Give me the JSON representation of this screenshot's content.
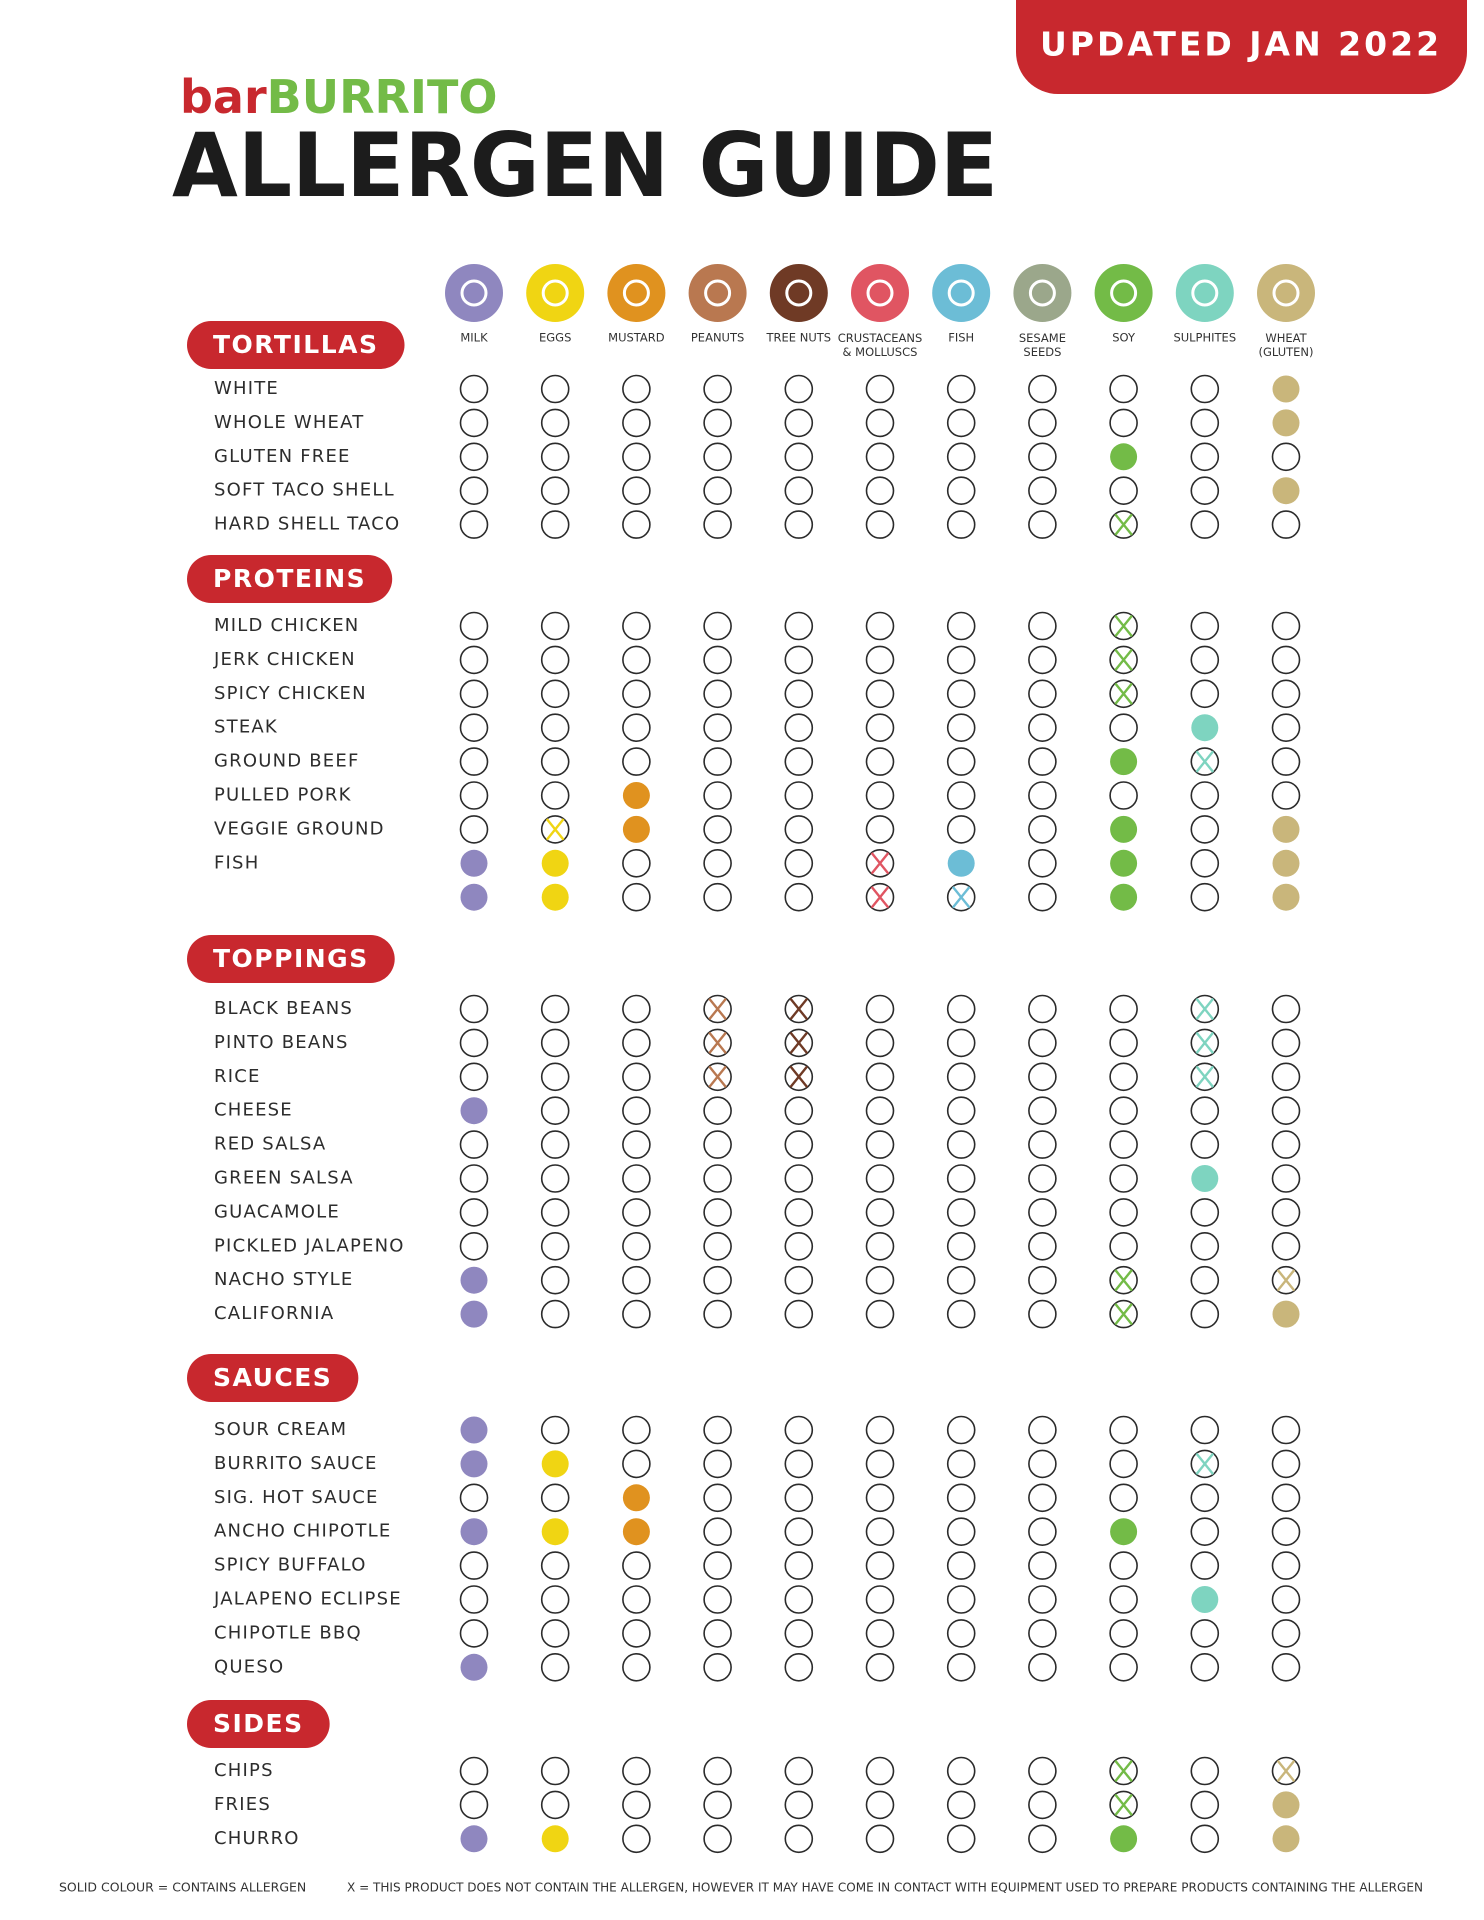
{
  "header": {
    "badge": "UPDATED JAN 2022",
    "logo_prefix": "bar",
    "logo_main": "BURRITO",
    "title": "ALLERGEN GUIDE"
  },
  "allergens": [
    {
      "label": "MILK",
      "color": "#8f87bf"
    },
    {
      "label": "EGGS",
      "color": "#f0d513"
    },
    {
      "label": "MUSTARD",
      "color": "#e0921f"
    },
    {
      "label": "PEANUTS",
      "color": "#b97850"
    },
    {
      "label": "TREE NUTS",
      "color": "#6f3a25"
    },
    {
      "label": "CRUSTACEANS\n& MOLLUSCS",
      "color": "#e05562"
    },
    {
      "label": "FISH",
      "color": "#6cbdd6"
    },
    {
      "label": "SESAME\nSEEDS",
      "color": "#9ba78b"
    },
    {
      "label": "SOY",
      "color": "#73bb47"
    },
    {
      "label": "SULPHITES",
      "color": "#7ed4c0"
    },
    {
      "label": "WHEAT\n(GLUTEN)",
      "color": "#c9b67b"
    }
  ],
  "sections": [
    {
      "title": "TORTILLAS",
      "rows": [
        {
          "label": "WHITE",
          "cells": "..........C"
        },
        {
          "label": "WHOLE WHEAT",
          "cells": "..........C"
        },
        {
          "label": "GLUTEN FREE",
          "cells": "........C.."
        },
        {
          "label": "SOFT TACO SHELL",
          "cells": "..........C"
        },
        {
          "label": "HARD SHELL TACO",
          "cells": "........X.."
        }
      ]
    },
    {
      "title": "PROTEINS",
      "rows": [
        {
          "label": "MILD CHICKEN",
          "cells": "........X.."
        },
        {
          "label": "JERK CHICKEN",
          "cells": "........X.."
        },
        {
          "label": "SPICY CHICKEN",
          "cells": "........X.."
        },
        {
          "label": "STEAK",
          "cells": ".........C."
        },
        {
          "label": "GROUND BEEF",
          "cells": "........CX."
        },
        {
          "label": "PULLED PORK",
          "cells": "..C........"
        },
        {
          "label": "VEGGIE GROUND",
          "cells": ".XC.....C.C"
        },
        {
          "label": "FISH",
          "cells": "CC...XC.C.C"
        },
        {
          "label": null,
          "cells": "CC...XX.C.C"
        }
      ]
    },
    {
      "title": "TOPPINGS",
      "rows": [
        {
          "label": "BLACK BEANS",
          "cells": "...XX....X."
        },
        {
          "label": "PINTO BEANS",
          "cells": "...XX....X."
        },
        {
          "label": "RICE",
          "cells": "...XX....X."
        },
        {
          "label": "CHEESE",
          "cells": "C.........."
        },
        {
          "label": "RED SALSA",
          "cells": "..........."
        },
        {
          "label": "GREEN SALSA",
          "cells": ".........C."
        },
        {
          "label": "GUACAMOLE",
          "cells": "..........."
        },
        {
          "label": "PICKLED JALAPENO",
          "cells": "..........."
        },
        {
          "label": "NACHO STYLE",
          "cells": "C.......X.X"
        },
        {
          "label": "CALIFORNIA",
          "cells": "C.......X.C"
        }
      ]
    },
    {
      "title": "SAUCES",
      "rows": [
        {
          "label": "SOUR CREAM",
          "cells": "C.........."
        },
        {
          "label": "BURRITO SAUCE",
          "cells": "CC.......X."
        },
        {
          "label": "SIG. HOT SAUCE",
          "cells": "..C........"
        },
        {
          "label": "ANCHO CHIPOTLE",
          "cells": "CCC.....C.."
        },
        {
          "label": "SPICY BUFFALO",
          "cells": "..........."
        },
        {
          "label": "JALAPENO ECLIPSE",
          "cells": ".........C."
        },
        {
          "label": "CHIPOTLE BBQ",
          "cells": "..........."
        },
        {
          "label": "QUESO",
          "cells": "C.........."
        }
      ]
    },
    {
      "title": "SIDES",
      "rows": [
        {
          "label": "CHIPS",
          "cells": "........X.X"
        },
        {
          "label": "FRIES",
          "cells": "........X.C"
        },
        {
          "label": "CHURRO",
          "cells": "CC......C.C"
        }
      ]
    }
  ],
  "footer": {
    "legend_solid": "SOLID COLOUR = CONTAINS ALLERGEN",
    "legend_x": "X = THIS PRODUCT DOES NOT CONTAIN THE ALLERGEN, HOWEVER IT MAY HAVE COME IN CONTACT WITH EQUIPMENT USED TO PREPARE PRODUCTS CONTAINING THE ALLERGEN"
  }
}
